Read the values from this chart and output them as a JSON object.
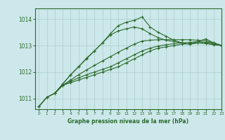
{
  "background_color": "#cce8ea",
  "grid_color": "#aacccc",
  "line_color": "#2d6a2d",
  "xlabel": "Graphe pression niveau de la mer (hPa)",
  "xlim": [
    -0.5,
    23
  ],
  "ylim": [
    1010.6,
    1014.4
  ],
  "yticks": [
    1011,
    1012,
    1013,
    1014
  ],
  "xticks": [
    0,
    1,
    2,
    3,
    4,
    5,
    6,
    7,
    8,
    9,
    10,
    11,
    12,
    13,
    14,
    15,
    16,
    17,
    18,
    19,
    20,
    21,
    22,
    23
  ],
  "series1_x": [
    0,
    1,
    2,
    3,
    4,
    5,
    6,
    7,
    8,
    9,
    10,
    11,
    12,
    13,
    14,
    15,
    16,
    17,
    18,
    19,
    20,
    21,
    22,
    23
  ],
  "series1_y": [
    1010.7,
    1011.05,
    1011.2,
    1011.5,
    1011.6,
    1011.7,
    1011.8,
    1011.9,
    1012.0,
    1012.1,
    1012.2,
    1012.35,
    1012.5,
    1012.65,
    1012.8,
    1012.9,
    1012.95,
    1013.0,
    1013.05,
    1013.07,
    1013.1,
    1013.07,
    1013.03,
    1013.0
  ],
  "series2_x": [
    0,
    1,
    2,
    3,
    4,
    5,
    6,
    7,
    8,
    9,
    10,
    11,
    12,
    13,
    14,
    15,
    16,
    17,
    18,
    19,
    20,
    21,
    22,
    23
  ],
  "series2_y": [
    1010.7,
    1011.05,
    1011.2,
    1011.5,
    1011.65,
    1011.78,
    1011.9,
    1012.0,
    1012.1,
    1012.2,
    1012.35,
    1012.5,
    1012.65,
    1012.8,
    1012.9,
    1012.98,
    1013.03,
    1013.07,
    1013.1,
    1013.12,
    1013.15,
    1013.12,
    1013.05,
    1013.0
  ],
  "series3_x": [
    0,
    1,
    2,
    3,
    4,
    5,
    6,
    7,
    8,
    9,
    10,
    11,
    12,
    13,
    14,
    15,
    16,
    17,
    18,
    19,
    20,
    21,
    22,
    23
  ],
  "series3_y": [
    1010.7,
    1011.05,
    1011.2,
    1011.5,
    1011.7,
    1011.9,
    1012.08,
    1012.25,
    1012.42,
    1012.58,
    1012.75,
    1012.9,
    1013.05,
    1013.17,
    1013.2,
    1013.22,
    1013.22,
    1013.22,
    1013.22,
    1013.22,
    1013.2,
    1013.18,
    1013.1,
    1013.0
  ],
  "series4_x": [
    2,
    3,
    4,
    5,
    6,
    7,
    8,
    9,
    10,
    11,
    12,
    13,
    14,
    15,
    16,
    17,
    18,
    19,
    20,
    21,
    22,
    23
  ],
  "series4_y": [
    1011.2,
    1011.55,
    1011.9,
    1012.2,
    1012.5,
    1012.8,
    1013.1,
    1013.4,
    1013.55,
    1013.63,
    1013.7,
    1013.63,
    1013.45,
    1013.3,
    1013.2,
    1013.15,
    1013.1,
    1013.05,
    1013.1,
    1013.12,
    1013.1,
    1013.0
  ],
  "series5_x": [
    2,
    3,
    4,
    5,
    6,
    7,
    8,
    9,
    10,
    11,
    12,
    13,
    14,
    15,
    16,
    17,
    18,
    19,
    20,
    21,
    22,
    23
  ],
  "series5_y": [
    1011.2,
    1011.55,
    1011.9,
    1012.2,
    1012.52,
    1012.8,
    1013.1,
    1013.45,
    1013.75,
    1013.88,
    1013.95,
    1014.08,
    1013.7,
    1013.5,
    1013.35,
    1013.2,
    1013.1,
    1013.05,
    1013.15,
    1013.25,
    1013.1,
    1013.0
  ]
}
